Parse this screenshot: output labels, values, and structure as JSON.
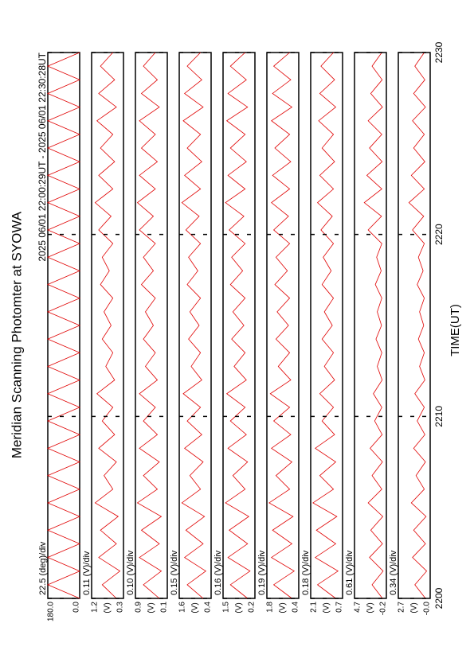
{
  "chart_data": {
    "type": "line",
    "title": "Meridian Scanning Photomter at SYOWA",
    "subtitle": "2025 06/01 22:00:29UT - 2025 06/01 22:30:28UT",
    "x_label": "TIME(UT)",
    "xlim": [
      2200,
      2230
    ],
    "xticks": [
      2200,
      2210,
      2220,
      2230
    ],
    "x": [
      2200,
      2200.75,
      2201.5,
      2202.25,
      2203,
      2203.75,
      2204.5,
      2205.25,
      2206,
      2206.75,
      2207.5,
      2208.25,
      2209,
      2209.75,
      2210.5,
      2211.25,
      2212,
      2212.75,
      2213.5,
      2214.25,
      2215,
      2215.75,
      2216.5,
      2217.25,
      2218,
      2218.75,
      2219.5,
      2220.25,
      2221,
      2221.75,
      2222.5,
      2223.25,
      2224,
      2224.75,
      2225.5,
      2226.25,
      2227,
      2227.75,
      2228.5,
      2229.25,
      2230
    ],
    "series": [
      {
        "name": "22.5 (deg)/div",
        "color": "#e00000",
        "ylim": [
          0,
          180
        ],
        "yticks": [
          {
            "value": 0,
            "label": "0.0"
          },
          {
            "value": 180,
            "label": "180.0"
          }
        ],
        "values": [
          0,
          180,
          0,
          180,
          0,
          180,
          0,
          180,
          0,
          180,
          0,
          180,
          0,
          180,
          0,
          180,
          0,
          180,
          0,
          180,
          0,
          180,
          0,
          180,
          0,
          180,
          0,
          180,
          0,
          180,
          0,
          180,
          0,
          180,
          0,
          180,
          0,
          180,
          0,
          180,
          0
        ]
      },
      {
        "name": "0.11 (V)/div",
        "unit": "(V)",
        "color": "#e00000",
        "ylim": [
          0.3,
          1.2
        ],
        "yticks": [
          0.3,
          1.2
        ],
        "values": [
          0.5,
          0.9,
          0.4,
          1.0,
          0.5,
          0.95,
          0.45,
          1.1,
          0.6,
          0.85,
          0.5,
          1.0,
          0.55,
          0.9,
          0.6,
          1.05,
          0.55,
          0.8,
          0.6,
          0.9,
          0.65,
          0.85,
          0.6,
          0.95,
          0.7,
          0.9,
          0.6,
          1.0,
          0.65,
          1.1,
          0.6,
          1.0,
          0.55,
          0.95,
          0.6,
          1.05,
          0.5,
          1.0,
          0.55,
          0.95,
          0.6
        ]
      },
      {
        "name": "0.10 (V)/div",
        "unit": "(V)",
        "color": "#e00000",
        "ylim": [
          0.1,
          0.9
        ],
        "yticks": [
          0.1,
          0.9
        ],
        "values": [
          0.3,
          0.7,
          0.25,
          0.8,
          0.3,
          0.75,
          0.25,
          0.85,
          0.35,
          0.7,
          0.3,
          0.8,
          0.35,
          0.7,
          0.4,
          0.8,
          0.35,
          0.65,
          0.4,
          0.7,
          0.45,
          0.65,
          0.4,
          0.75,
          0.45,
          0.7,
          0.4,
          0.8,
          0.45,
          0.85,
          0.4,
          0.8,
          0.35,
          0.75,
          0.4,
          0.8,
          0.3,
          0.75,
          0.35,
          0.7,
          0.4
        ]
      },
      {
        "name": "0.15 (V)/div",
        "unit": "(V)",
        "color": "#e00000",
        "ylim": [
          0.4,
          1.6
        ],
        "yticks": [
          0.4,
          1.6
        ],
        "values": [
          0.7,
          1.3,
          0.6,
          1.4,
          0.7,
          1.35,
          0.65,
          1.5,
          0.8,
          1.2,
          0.7,
          1.4,
          0.75,
          1.3,
          0.8,
          1.45,
          0.75,
          1.15,
          0.8,
          1.25,
          0.85,
          1.2,
          0.8,
          1.3,
          0.9,
          1.25,
          0.8,
          1.35,
          0.85,
          1.5,
          0.8,
          1.4,
          0.75,
          1.3,
          0.8,
          1.45,
          0.7,
          1.4,
          0.75,
          1.3,
          0.8
        ]
      },
      {
        "name": "0.16 (V)/div",
        "unit": "(V)",
        "color": "#e00000",
        "ylim": [
          0.2,
          1.5
        ],
        "yticks": [
          0.2,
          1.5
        ],
        "values": [
          0.5,
          1.2,
          0.4,
          1.3,
          0.5,
          1.25,
          0.45,
          1.4,
          0.6,
          1.1,
          0.5,
          1.3,
          0.55,
          1.2,
          0.6,
          1.35,
          0.55,
          1.05,
          0.6,
          1.15,
          0.65,
          1.1,
          0.6,
          1.2,
          0.7,
          1.15,
          0.6,
          1.25,
          0.65,
          1.4,
          0.6,
          1.3,
          0.55,
          1.2,
          0.6,
          1.35,
          0.5,
          1.3,
          0.55,
          1.2,
          0.6
        ]
      },
      {
        "name": "0.19 (V)/div",
        "unit": "(V)",
        "color": "#e00000",
        "ylim": [
          0.4,
          1.8
        ],
        "yticks": [
          0.4,
          1.8
        ],
        "values": [
          0.7,
          1.5,
          0.6,
          1.6,
          0.7,
          1.55,
          0.65,
          1.7,
          0.8,
          1.4,
          0.7,
          1.6,
          0.75,
          1.5,
          0.8,
          1.65,
          0.75,
          1.3,
          0.8,
          1.4,
          0.85,
          1.35,
          0.8,
          1.45,
          0.9,
          1.4,
          0.8,
          1.5,
          0.85,
          1.6,
          0.8,
          1.55,
          0.75,
          1.45,
          0.8,
          1.6,
          0.7,
          1.55,
          0.75,
          1.5,
          0.8
        ]
      },
      {
        "name": "0.18 (V)/div",
        "unit": "(V)",
        "color": "#e00000",
        "ylim": [
          0.7,
          2.1
        ],
        "yticks": [
          0.7,
          2.1
        ],
        "values": [
          1.0,
          1.8,
          0.9,
          1.9,
          1.0,
          1.85,
          0.95,
          2.0,
          1.1,
          1.7,
          1.0,
          1.9,
          1.05,
          1.6,
          1.1,
          1.7,
          1.05,
          1.5,
          1.1,
          1.6,
          1.15,
          1.5,
          1.1,
          1.6,
          1.2,
          1.55,
          1.1,
          1.65,
          1.15,
          1.8,
          1.1,
          1.7,
          1.05,
          1.6,
          1.1,
          1.75,
          1.0,
          1.7,
          1.05,
          1.65,
          1.1
        ]
      },
      {
        "name": "0.61 (V)/div",
        "unit": "(V)",
        "color": "#e00000",
        "ylim": [
          -0.2,
          4.7
        ],
        "yticks": [
          -0.2,
          4.7
        ],
        "values": [
          0.4,
          2.0,
          0.3,
          2.4,
          0.4,
          2.2,
          0.35,
          2.6,
          0.5,
          2.0,
          0.4,
          2.3,
          0.45,
          1.6,
          0.5,
          1.8,
          0.45,
          1.2,
          0.5,
          1.4,
          0.55,
          1.2,
          0.5,
          1.5,
          0.6,
          1.3,
          0.5,
          2.6,
          0.55,
          3.2,
          0.5,
          2.8,
          0.45,
          2.4,
          0.5,
          2.6,
          0.4,
          2.2,
          0.45,
          2.0,
          0.5
        ]
      },
      {
        "name": "0.34 (V)/div",
        "unit": "(V)",
        "color": "#e00000",
        "ylim": [
          0,
          2.7
        ],
        "yticks": [
          {
            "value": 0,
            "label": "-0.0"
          },
          2.7
        ],
        "values": [
          0.4,
          1.3,
          0.3,
          1.5,
          0.4,
          1.4,
          0.35,
          1.6,
          0.5,
          1.2,
          0.4,
          1.4,
          0.45,
          1.1,
          0.5,
          1.3,
          0.45,
          0.9,
          0.5,
          1.0,
          0.55,
          0.9,
          0.5,
          1.1,
          0.6,
          1.0,
          0.5,
          1.5,
          0.55,
          1.8,
          0.5,
          1.6,
          0.45,
          1.4,
          0.5,
          1.5,
          0.4,
          1.4,
          0.45,
          1.3,
          0.5
        ]
      }
    ]
  }
}
